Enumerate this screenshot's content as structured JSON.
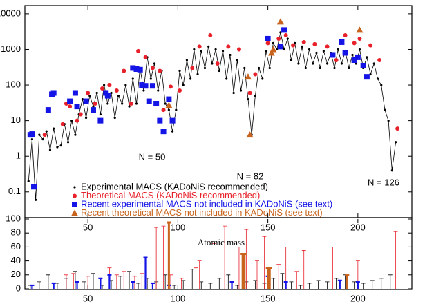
{
  "chart_data": [
    {
      "type": "line-scatter",
      "log_y": true,
      "xlim": [
        15,
        230
      ],
      "ylim": [
        0.019,
        17000
      ],
      "xticks": [
        50,
        100,
        150,
        200
      ],
      "yticks": [
        10000,
        1000,
        100,
        10,
        1,
        0.1
      ],
      "annotations": [
        "N = 50",
        "N = 82",
        "N = 126"
      ],
      "series": [
        {
          "name": "Experimental MACS (KADoNiS recommended)",
          "color": "#000000",
          "marker": "dot",
          "line": true,
          "x": [
            17,
            19,
            21,
            23,
            25,
            27,
            29,
            31,
            33,
            35,
            37,
            39,
            41,
            43,
            45,
            47,
            49,
            51,
            53,
            55,
            57,
            59,
            61,
            63,
            65,
            67,
            69,
            71,
            73,
            75,
            77,
            79,
            81,
            83,
            85,
            87,
            89,
            91,
            93,
            95,
            97,
            99,
            101,
            103,
            105,
            107,
            109,
            111,
            113,
            115,
            117,
            119,
            121,
            123,
            125,
            127,
            129,
            131,
            133,
            135,
            137,
            139,
            141,
            143,
            145,
            147,
            149,
            151,
            153,
            155,
            157,
            159,
            161,
            163,
            165,
            167,
            169,
            171,
            173,
            175,
            177,
            179,
            181,
            183,
            185,
            187,
            189,
            191,
            193,
            195,
            197,
            199,
            201,
            203,
            205,
            207,
            209,
            211,
            213,
            215,
            217,
            219,
            221
          ],
          "values": [
            0.2,
            3,
            0.06,
            4,
            3,
            5,
            1.5,
            6,
            1.8,
            2,
            8,
            2.5,
            10,
            4,
            15,
            40,
            12,
            50,
            25,
            60,
            15,
            100,
            30,
            60,
            12,
            50,
            30,
            100,
            25,
            150,
            30,
            300,
            70,
            600,
            150,
            400,
            70,
            250,
            30,
            20,
            5,
            20,
            250,
            100,
            500,
            150,
            1000,
            200,
            900,
            300,
            1200,
            400,
            1000,
            250,
            900,
            150,
            700,
            60,
            500,
            70,
            300,
            40,
            4,
            50,
            300,
            150,
            900,
            300,
            1500,
            1000,
            3000,
            1000,
            2000,
            500,
            1500,
            400,
            1200,
            300,
            1000,
            400,
            800,
            300,
            900,
            400,
            800,
            300,
            1000,
            400,
            900,
            300,
            700,
            400,
            1000,
            300,
            600,
            200,
            400,
            150,
            100,
            20,
            10,
            0.4,
            2.5
          ]
        },
        {
          "name": "Theoretical MACS (KADoNiS recommended)",
          "color": "#e8202a",
          "marker": "circle",
          "line": false,
          "x": [
            26,
            36,
            38,
            40,
            44,
            46,
            50,
            54,
            58,
            62,
            66,
            70,
            74,
            78,
            82,
            86,
            90,
            92,
            96,
            101,
            108,
            112,
            118,
            122,
            128,
            134,
            140,
            143,
            150,
            156,
            160,
            164,
            170,
            176,
            183,
            188,
            193,
            198,
            201,
            207,
            212,
            222
          ],
          "values": [
            4,
            8,
            30,
            25,
            10,
            15,
            60,
            30,
            80,
            100,
            70,
            250,
            30,
            900,
            600,
            300,
            250,
            20,
            90,
            70,
            300,
            1200,
            2500,
            400,
            1200,
            1000,
            60,
            200,
            1500,
            2000,
            2500,
            1300,
            1600,
            1400,
            1200,
            500,
            2500,
            1500,
            2000,
            1300,
            500,
            6
          ]
        },
        {
          "name": "Recent experimental MACS not included in KADoNiS (see text)",
          "color": "#1414e6",
          "marker": "square",
          "line": false,
          "x": [
            18,
            19,
            20,
            28,
            30,
            31,
            40,
            43,
            44,
            49,
            53,
            57,
            60,
            61,
            75,
            77,
            79,
            80,
            82,
            84,
            86,
            88,
            90,
            92,
            95,
            97,
            150,
            157,
            159,
            186,
            191,
            193,
            198,
            200,
            203,
            205
          ],
          "values": [
            4,
            4.2,
            0.14,
            20,
            55,
            60,
            35,
            60,
            25,
            35,
            20,
            10,
            60,
            50,
            300,
            280,
            270,
            100,
            95,
            35,
            95,
            30,
            10,
            5,
            40,
            10,
            2000,
            1200,
            3500,
            700,
            1600,
            800,
            500,
            600,
            350,
            170
          ]
        },
        {
          "name": "Recent theoretical MACS not included in KADoNiS (see text)",
          "color": "#c8641e",
          "marker": "triangle",
          "line": false,
          "x": [
            95,
            139,
            140,
            152,
            153,
            157,
            201
          ],
          "values": [
            27,
            170,
            4,
            800,
            1000,
            6000,
            3500
          ]
        }
      ]
    },
    {
      "type": "error-bar",
      "xlabel": "Atomic mass",
      "xlim": [
        15,
        230
      ],
      "ylim": [
        0,
        100
      ],
      "xticks": [
        50,
        100,
        150,
        200
      ],
      "yticks": [
        0,
        20,
        40,
        60,
        80,
        100
      ],
      "series": [
        {
          "color": "#000000",
          "x": [
            18,
            23,
            28,
            33,
            38,
            43,
            48,
            53,
            58,
            63,
            68,
            73,
            78,
            83,
            88,
            93,
            98,
            103,
            108,
            113,
            118,
            123,
            128,
            133,
            138,
            143,
            148,
            153,
            158,
            163,
            168,
            173,
            178,
            183,
            188,
            193,
            198,
            203,
            208,
            213,
            218
          ],
          "values": [
            5,
            10,
            20,
            8,
            15,
            25,
            10,
            22,
            5,
            12,
            18,
            25,
            8,
            15,
            10,
            20,
            5,
            12,
            28,
            10,
            8,
            15,
            20,
            5,
            10,
            12,
            8,
            15,
            22,
            10,
            5,
            8,
            12,
            10,
            15,
            20,
            10,
            8,
            12,
            15,
            20
          ]
        },
        {
          "color": "#e8202a",
          "x": [
            38,
            42,
            50,
            62,
            66,
            70,
            76,
            80,
            88,
            92,
            96,
            102,
            110,
            112,
            120,
            126,
            134,
            138,
            144,
            148,
            156,
            160,
            166,
            170,
            186,
            194,
            200,
            221
          ],
          "values": [
            20,
            22,
            18,
            30,
            20,
            25,
            18,
            22,
            88,
            90,
            20,
            15,
            30,
            40,
            65,
            90,
            60,
            85,
            40,
            75,
            35,
            60,
            25,
            55,
            60,
            20,
            40,
            82
          ]
        },
        {
          "color": "#1414e6",
          "x": [
            19,
            31,
            44,
            57,
            62,
            75,
            82,
            86,
            95,
            130,
            150,
            160,
            190,
            200
          ],
          "values": [
            5,
            8,
            10,
            15,
            20,
            10,
            45,
            8,
            5,
            10,
            18,
            10,
            12,
            10
          ]
        },
        {
          "color": "#c8641e",
          "x": [
            95,
            136,
            137,
            150,
            151,
            194
          ],
          "values": [
            95,
            50,
            50,
            30,
            30,
            20
          ]
        }
      ]
    }
  ]
}
